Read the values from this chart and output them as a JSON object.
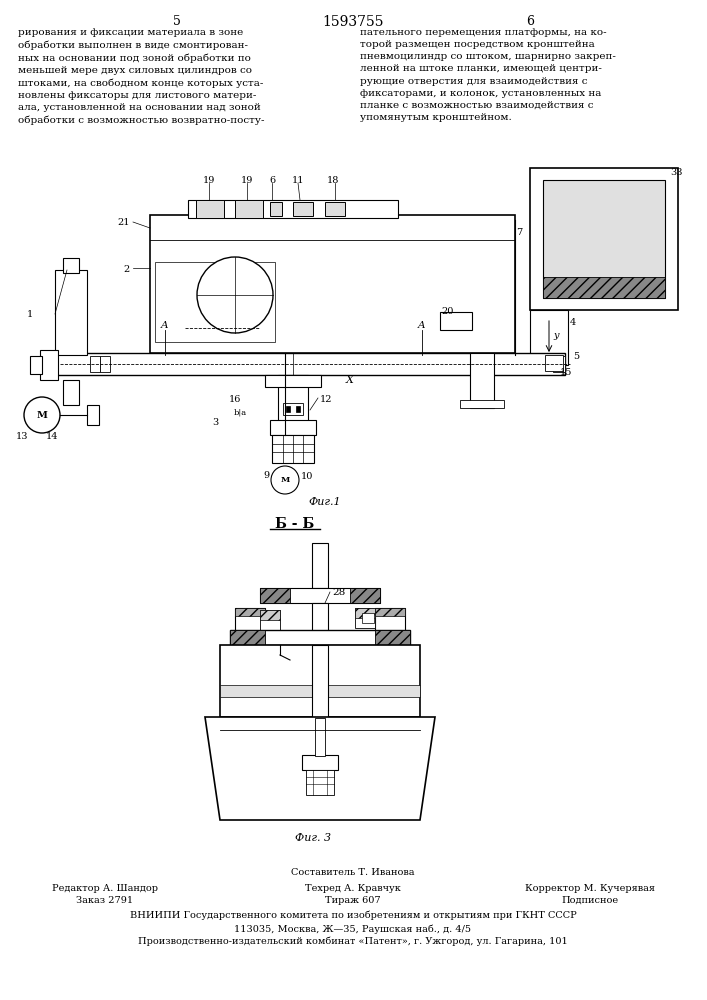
{
  "page_number_left": "5",
  "page_number_center": "1593755",
  "page_number_right": "6",
  "text_left": "рирования и фиксации материала в зоне\nобработки выполнен в виде смонтирован-\nных на основании под зоной обработки по\nменьшей мере двух силовых цилиндров со\nштоками, на свободном конце которых уста-\nновлены фиксаторы для листового матери-\nала, установленной на основании над зоной\nобработки с возможностью возвратно-посту-",
  "text_right": "пательного перемещения платформы, на ко-\nторой размещен посредством кронштейна\nпневмоцилиндр со штоком, шарнирно закреп-\nленной на штоке планки, имеющей центри-\nрующие отверстия для взаимодействия с\nфиксаторами, и колонок, установленных на\nпланке с возможностью взаимодействия с\nупомянутым кронштейном.",
  "fig1_label": "Фиг.1",
  "fig3_label": "Фиг. 3",
  "section_label": "Б - Б",
  "footer_line1_center": "Составитель Т. Иванова",
  "footer_line2_left": "Редактор А. Шандор",
  "footer_line2_center": "Техред А. Кравчук",
  "footer_line2_right": "Корректор М. Кучерявая",
  "footer_line3_left": "Заказ 2791",
  "footer_line3_center": "Тираж 607",
  "footer_line3_right": "Подписное",
  "footer_line4": "ВНИИПИ Государственного комитета по изобретениям и открытиям при ГКНТ СССР",
  "footer_line5": "113035, Москва, Ж—35, Раушская наб., д. 4/5",
  "footer_line6": "Производственно-издательский комбинат «Патент», г. Ужгород, ул. Гагарина, 101",
  "bg_color": "#ffffff",
  "text_color": "#000000"
}
